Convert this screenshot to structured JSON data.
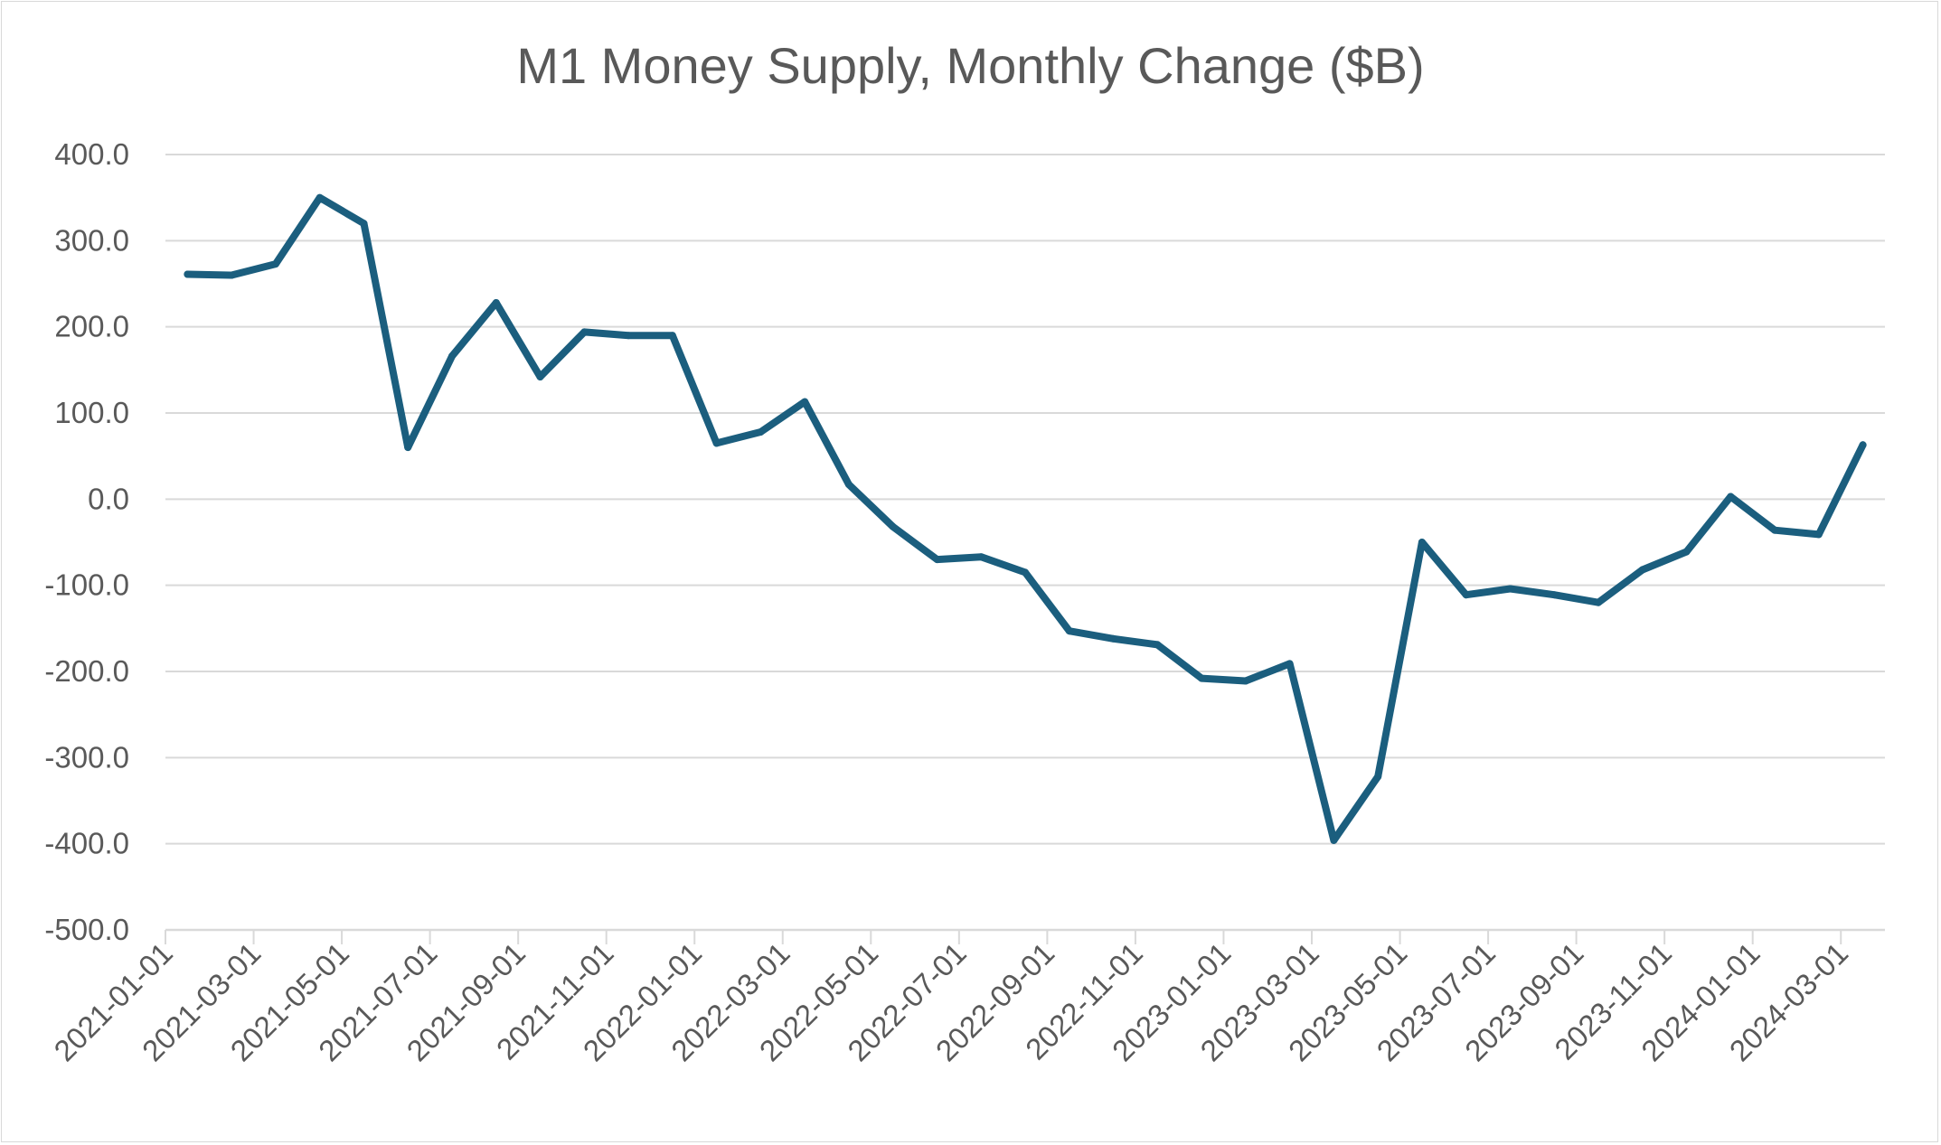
{
  "colors": {
    "line": "#1b5e7e",
    "grid": "#d9d9d9",
    "text": "#595959"
  },
  "chart_data": {
    "type": "line",
    "title": "M1 Money Supply, Monthly Change ($B)",
    "xlabel": "",
    "ylabel": "",
    "ylim": [
      -500,
      400
    ],
    "yticks": [
      "400.0",
      "300.0",
      "200.0",
      "100.0",
      "0.0",
      "-100.0",
      "-200.0",
      "-300.0",
      "-400.0",
      "-500.0"
    ],
    "x_tick_labels": [
      "2021-01-01",
      "2021-03-01",
      "2021-05-01",
      "2021-07-01",
      "2021-09-01",
      "2021-11-01",
      "2022-01-01",
      "2022-03-01",
      "2022-05-01",
      "2022-07-01",
      "2022-09-01",
      "2022-11-01",
      "2023-01-01",
      "2023-03-01",
      "2023-05-01",
      "2023-07-01",
      "2023-09-01",
      "2023-11-01",
      "2024-01-01",
      "2024-03-01"
    ],
    "grid": true,
    "legend": "none",
    "x": [
      "2021-01-01",
      "2021-02-01",
      "2021-03-01",
      "2021-04-01",
      "2021-05-01",
      "2021-06-01",
      "2021-07-01",
      "2021-08-01",
      "2021-09-01",
      "2021-10-01",
      "2021-11-01",
      "2021-12-01",
      "2022-01-01",
      "2022-02-01",
      "2022-03-01",
      "2022-04-01",
      "2022-05-01",
      "2022-06-01",
      "2022-07-01",
      "2022-08-01",
      "2022-09-01",
      "2022-10-01",
      "2022-11-01",
      "2022-12-01",
      "2023-01-01",
      "2023-02-01",
      "2023-03-01",
      "2023-04-01",
      "2023-05-01",
      "2023-06-01",
      "2023-07-01",
      "2023-08-01",
      "2023-09-01",
      "2023-10-01",
      "2023-11-01",
      "2023-12-01",
      "2024-01-01",
      "2024-02-01",
      "2024-03-01"
    ],
    "series": [
      {
        "values": [
          261,
          260,
          273,
          350,
          320,
          60,
          166,
          228,
          142,
          194,
          190,
          190,
          65,
          78,
          113,
          17,
          -32,
          -70,
          -67,
          -85,
          -153,
          -162,
          -169,
          -208,
          -211,
          -191,
          -396,
          -322,
          -50,
          -111,
          -104,
          -111,
          -120,
          -82,
          -61,
          3,
          -36,
          -41,
          63
        ]
      }
    ]
  }
}
